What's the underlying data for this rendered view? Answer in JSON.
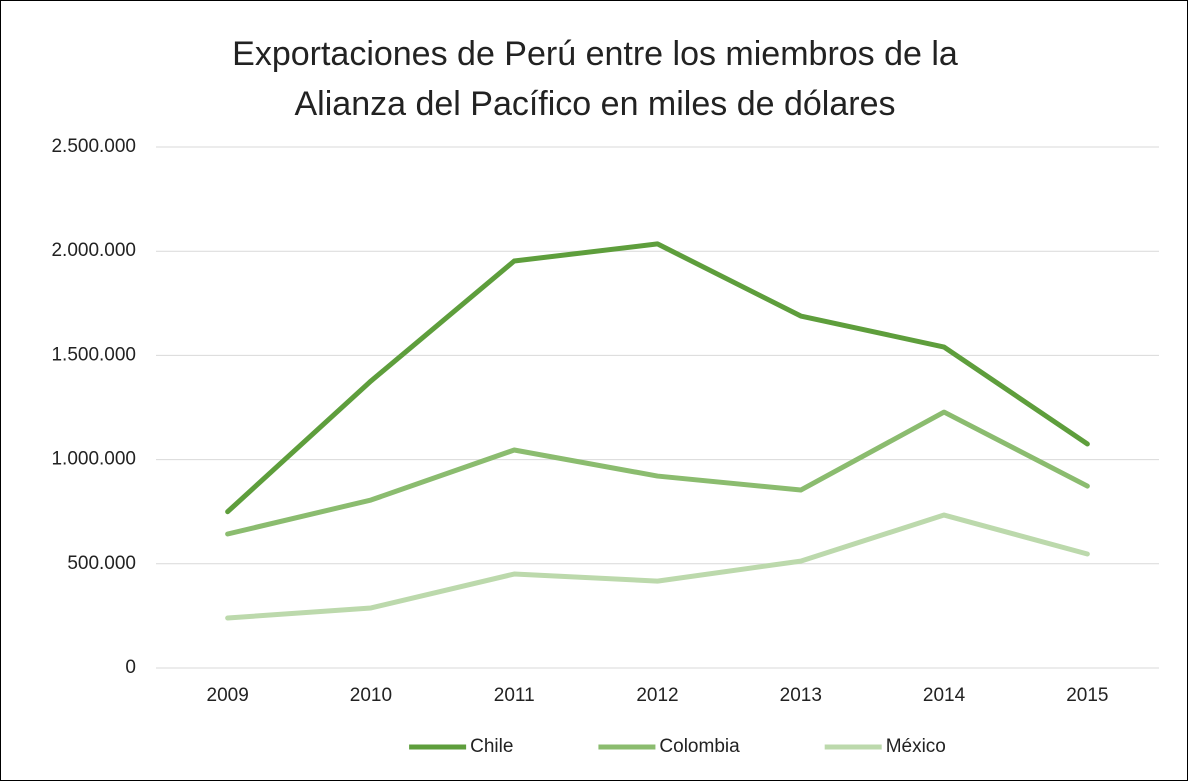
{
  "chart_data": {
    "type": "line",
    "title": "Exportaciones de Perú entre los miembros de la Alianza del Pacífico en miles de dólares",
    "categories": [
      "2009",
      "2010",
      "2011",
      "2012",
      "2013",
      "2014",
      "2015"
    ],
    "series": [
      {
        "name": "Chile",
        "color": "#5e9e3c",
        "values": [
          750000,
          1377000,
          1953000,
          2035000,
          1689000,
          1540000,
          1075000
        ]
      },
      {
        "name": "Colombia",
        "color": "#8bbc6f",
        "values": [
          643000,
          806000,
          1046000,
          921000,
          854000,
          1228000,
          873000
        ]
      },
      {
        "name": "México",
        "color": "#bcd9ac",
        "values": [
          240000,
          288000,
          451000,
          417000,
          513000,
          734000,
          547000
        ]
      }
    ],
    "ylim": [
      0,
      2500000
    ],
    "yticks": [
      0,
      {
        "value": 500000,
        "label": "500.000"
      },
      {
        "value": 1000000,
        "label": "1.000.000"
      },
      {
        "value": 1500000,
        "label": "1.500.000"
      },
      {
        "value": 2000000,
        "label": "2.000.000"
      },
      {
        "value": 2500000,
        "label": "2.500.000"
      }
    ],
    "grid": true,
    "legend": "bottom"
  }
}
